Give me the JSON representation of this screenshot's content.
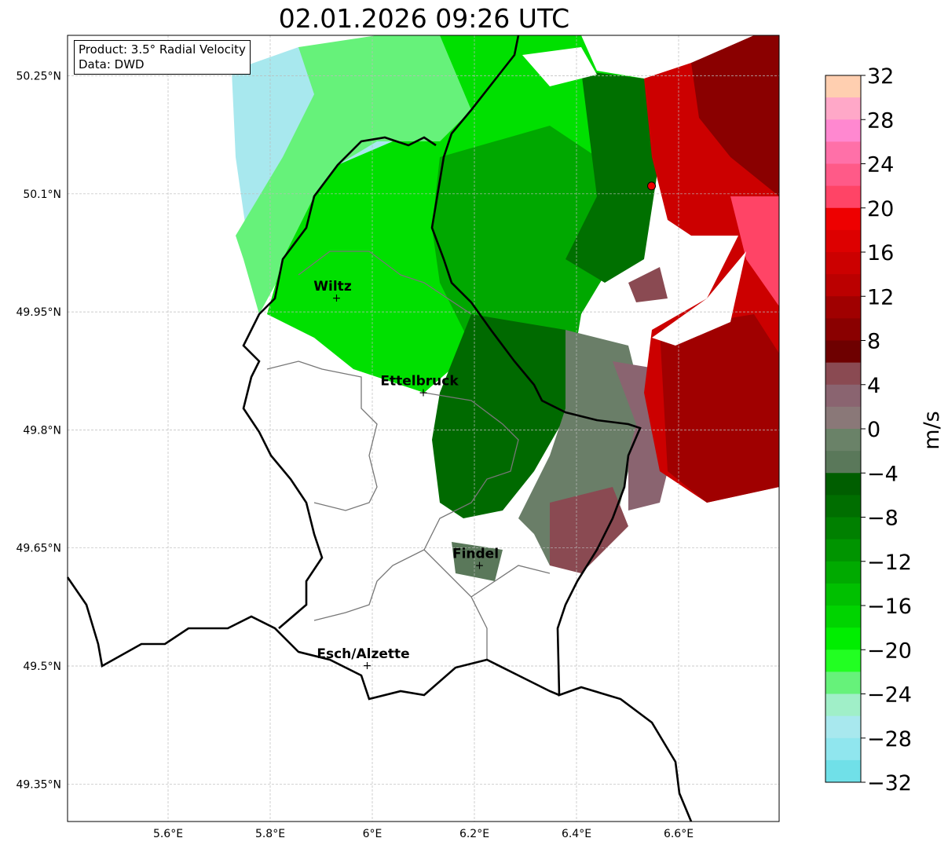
{
  "title": "02.01.2026 09:26 UTC",
  "info": {
    "product": "Product: 3.5° Radial Velocity",
    "data": "Data: DWD"
  },
  "axes": {
    "lon_ticks": [
      {
        "v": 5.6,
        "label": "5.6°E"
      },
      {
        "v": 5.8,
        "label": "5.8°E"
      },
      {
        "v": 6.0,
        "label": "6°E"
      },
      {
        "v": 6.2,
        "label": "6.2°E"
      },
      {
        "v": 6.4,
        "label": "6.4°E"
      },
      {
        "v": 6.6,
        "label": "6.6°E"
      }
    ],
    "lat_ticks": [
      {
        "v": 50.25,
        "label": "50.25°N"
      },
      {
        "v": 50.1,
        "label": "50.1°N"
      },
      {
        "v": 49.95,
        "label": "49.95°N"
      },
      {
        "v": 49.8,
        "label": "49.8°N"
      },
      {
        "v": 49.65,
        "label": "49.65°N"
      },
      {
        "v": 49.5,
        "label": "49.5°N"
      },
      {
        "v": 49.35,
        "label": "49.35°N"
      }
    ],
    "lon_range": [
      5.4,
      6.8
    ],
    "lat_range": [
      49.3,
      50.3
    ]
  },
  "cities": [
    {
      "name": "Wiltz",
      "lon": 5.93,
      "lat": 49.967
    },
    {
      "name": "Ettelbruck",
      "lon": 6.1,
      "lat": 49.847
    },
    {
      "name": "Findel",
      "lon": 6.21,
      "lat": 49.627
    },
    {
      "name": "Esch/Alzette",
      "lon": 5.99,
      "lat": 49.5
    }
  ],
  "radar_site": {
    "lon": 6.547,
    "lat": 50.11
  },
  "colorbar": {
    "label": "m/s",
    "min": -32,
    "max": 32,
    "ticks": [
      "32",
      "28",
      "24",
      "20",
      "16",
      "12",
      "8",
      "4",
      "0",
      "−4",
      "−8",
      "−12",
      "−16",
      "−20",
      "−24",
      "−28",
      "−32"
    ],
    "colors": [
      "#ffcfb0",
      "#ffa8c8",
      "#ff88d0",
      "#ff70a8",
      "#ff5a88",
      "#ff4466",
      "#ee0000",
      "#dd0000",
      "#cc0000",
      "#bb0000",
      "#a00000",
      "#8a0000",
      "#6e0000",
      "#8a4a52",
      "#8a6470",
      "#8a7878",
      "#6a8268",
      "#5a785a",
      "#005e00",
      "#006e00",
      "#008000",
      "#009400",
      "#00aa00",
      "#00c000",
      "#00d400",
      "#00ee00",
      "#22ff22",
      "#66f27a",
      "#a0efc8",
      "#a8e8ee",
      "#90e6ee",
      "#70e0e8"
    ]
  }
}
